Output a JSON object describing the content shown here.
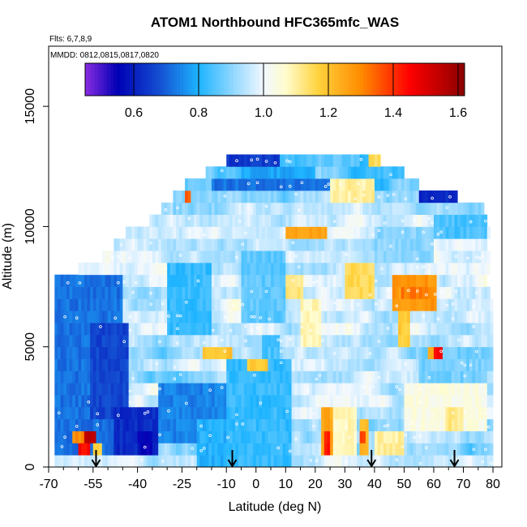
{
  "chart_data": {
    "type": "heatmap",
    "title": "ATOM1 Northbound HFC365mfc_WAS",
    "flights_label": "Flts: 6,7,8,9",
    "dates_label": "MMDD: 0812,0815,0817,0820",
    "xlabel": "Latitude (deg N)",
    "ylabel": "Altitude (m)",
    "xlim": [
      -70,
      83
    ],
    "ylim": [
      0,
      17500
    ],
    "x_ticks": [
      -70,
      -55,
      -40,
      -25,
      -10,
      0,
      10,
      20,
      30,
      40,
      50,
      60,
      70,
      80
    ],
    "x_ticks_minor": [
      -65,
      -60,
      -50,
      -45,
      -35,
      -30,
      -20,
      -15,
      -5,
      5,
      15,
      25,
      35,
      45,
      55,
      65,
      75
    ],
    "y_ticks": [
      0,
      5000,
      10000,
      15000
    ],
    "colorbar": {
      "range": [
        0.45,
        1.62
      ],
      "ticks": [
        0.6,
        0.8,
        1.0,
        1.2,
        1.4,
        1.6
      ],
      "tick_labels": [
        "0.6",
        "0.8",
        "1.0",
        "1.2",
        "1.4",
        "1.6"
      ],
      "stops": [
        {
          "v": 0.45,
          "c": "#8a2be2"
        },
        {
          "v": 0.55,
          "c": "#0000b4"
        },
        {
          "v": 0.68,
          "c": "#1450d2"
        },
        {
          "v": 0.8,
          "c": "#1eb4ff"
        },
        {
          "v": 0.92,
          "c": "#a0dcff"
        },
        {
          "v": 1.0,
          "c": "#f2f8ff"
        },
        {
          "v": 1.07,
          "c": "#fffccc"
        },
        {
          "v": 1.17,
          "c": "#ffd23c"
        },
        {
          "v": 1.3,
          "c": "#ff8c00"
        },
        {
          "v": 1.45,
          "c": "#ff0000"
        },
        {
          "v": 1.62,
          "c": "#8b0000"
        }
      ]
    },
    "profile_arrows_lat": [
      -54,
      -8,
      39,
      67
    ],
    "altitude_bin_m": 500,
    "profile": [
      {
        "alt": 250,
        "lat": [
          -68,
          80
        ],
        "base": 0.95
      },
      {
        "alt": 750,
        "lat": [
          -68,
          80
        ],
        "base": 0.92
      },
      {
        "alt": 1250,
        "lat": [
          -68,
          80
        ],
        "base": 0.95
      },
      {
        "alt": 1750,
        "lat": [
          -68,
          80
        ],
        "base": 0.93
      },
      {
        "alt": 2250,
        "lat": [
          -68,
          80
        ],
        "base": 0.96
      },
      {
        "alt": 2750,
        "lat": [
          -68,
          80
        ],
        "base": 0.95
      },
      {
        "alt": 3250,
        "lat": [
          -68,
          80
        ],
        "base": 0.95
      },
      {
        "alt": 3750,
        "lat": [
          -68,
          80
        ],
        "base": 0.94
      },
      {
        "alt": 4250,
        "lat": [
          -68,
          80
        ],
        "base": 0.96
      },
      {
        "alt": 4750,
        "lat": [
          -68,
          80
        ],
        "base": 0.94
      },
      {
        "alt": 5250,
        "lat": [
          -68,
          80
        ],
        "base": 0.95
      },
      {
        "alt": 5750,
        "lat": [
          -68,
          80
        ],
        "base": 0.96
      },
      {
        "alt": 6250,
        "lat": [
          -68,
          80
        ],
        "base": 0.97
      },
      {
        "alt": 6750,
        "lat": [
          -68,
          80
        ],
        "base": 0.98
      },
      {
        "alt": 7250,
        "lat": [
          -68,
          79
        ],
        "base": 0.97
      },
      {
        "alt": 7750,
        "lat": [
          -68,
          78
        ],
        "base": 0.98
      },
      {
        "alt": 8250,
        "lat": [
          -60,
          79
        ],
        "base": 0.97
      },
      {
        "alt": 8750,
        "lat": [
          -52,
          79
        ],
        "base": 0.98
      },
      {
        "alt": 9250,
        "lat": [
          -48,
          78
        ],
        "base": 0.96
      },
      {
        "alt": 9750,
        "lat": [
          -44,
          79
        ],
        "base": 0.97
      },
      {
        "alt": 10250,
        "lat": [
          -36,
          78
        ],
        "base": 0.96
      },
      {
        "alt": 10750,
        "lat": [
          -32,
          77
        ],
        "base": 0.94
      },
      {
        "alt": 11250,
        "lat": [
          -28,
          68
        ],
        "base": 0.9
      },
      {
        "alt": 11750,
        "lat": [
          -24,
          55
        ],
        "base": 0.88
      },
      {
        "alt": 12250,
        "lat": [
          -17,
          50
        ],
        "base": 0.86
      },
      {
        "alt": 12750,
        "lat": [
          -10,
          42
        ],
        "base": 0.82
      }
    ],
    "anomalies": [
      {
        "lat": [
          -68,
          -45
        ],
        "alt": [
          500,
          8000
        ],
        "value": 0.72
      },
      {
        "lat": [
          -56,
          -43
        ],
        "alt": [
          2000,
          6000
        ],
        "value": 0.66
      },
      {
        "lat": [
          -48,
          -33
        ],
        "alt": [
          500,
          2500
        ],
        "value": 0.62
      },
      {
        "lat": [
          -40,
          -35
        ],
        "alt": [
          500,
          1500
        ],
        "value": 0.56
      },
      {
        "lat": [
          -60,
          -56
        ],
        "alt": [
          500,
          1500
        ],
        "value": 1.45
      },
      {
        "lat": [
          -58,
          -54
        ],
        "alt": [
          1000,
          1500
        ],
        "value": 1.55
      },
      {
        "lat": [
          -62,
          -58
        ],
        "alt": [
          1000,
          1500
        ],
        "value": 1.3
      },
      {
        "lat": [
          -55,
          -52
        ],
        "alt": [
          500,
          1000
        ],
        "value": 1.18
      },
      {
        "lat": [
          -33,
          -10
        ],
        "alt": [
          1000,
          3500
        ],
        "value": 0.74
      },
      {
        "lat": [
          -20,
          -5
        ],
        "alt": [
          0,
          2000
        ],
        "value": 0.8
      },
      {
        "lat": [
          -10,
          12
        ],
        "alt": [
          0,
          4500
        ],
        "value": 0.82
      },
      {
        "lat": [
          22,
          26
        ],
        "alt": [
          500,
          2500
        ],
        "value": 1.25
      },
      {
        "lat": [
          23,
          25
        ],
        "alt": [
          500,
          1500
        ],
        "value": 1.42
      },
      {
        "lat": [
          35,
          38
        ],
        "alt": [
          500,
          2000
        ],
        "value": 1.22
      },
      {
        "lat": [
          35,
          37
        ],
        "alt": [
          1000,
          1500
        ],
        "value": 1.38
      },
      {
        "lat": [
          26,
          34
        ],
        "alt": [
          500,
          2500
        ],
        "value": 1.08
      },
      {
        "lat": [
          40,
          50
        ],
        "alt": [
          500,
          1500
        ],
        "value": 1.1
      },
      {
        "lat": [
          50,
          78
        ],
        "alt": [
          1500,
          3500
        ],
        "value": 1.04
      },
      {
        "lat": [
          55,
          78
        ],
        "alt": [
          3500,
          5000
        ],
        "value": 0.88
      },
      {
        "lat": [
          48,
          52
        ],
        "alt": [
          5000,
          6500
        ],
        "value": 1.18
      },
      {
        "lat": [
          58,
          62
        ],
        "alt": [
          4500,
          5000
        ],
        "value": 1.25
      },
      {
        "lat": [
          60,
          63
        ],
        "alt": [
          4500,
          5000
        ],
        "value": 1.45
      },
      {
        "lat": [
          46,
          61
        ],
        "alt": [
          6500,
          8000
        ],
        "value": 1.28
      },
      {
        "lat": [
          49,
          58
        ],
        "alt": [
          7000,
          7500
        ],
        "value": 1.32
      },
      {
        "lat": [
          -18,
          -8
        ],
        "alt": [
          4500,
          5000
        ],
        "value": 1.2
      },
      {
        "lat": [
          -3,
          4
        ],
        "alt": [
          4000,
          4500
        ],
        "value": 1.18
      },
      {
        "lat": [
          15,
          22
        ],
        "alt": [
          5000,
          7000
        ],
        "value": 1.08
      },
      {
        "lat": [
          30,
          40
        ],
        "alt": [
          7000,
          8500
        ],
        "value": 1.15
      },
      {
        "lat": [
          8,
          16
        ],
        "alt": [
          7000,
          8000
        ],
        "value": 1.12
      },
      {
        "lat": [
          10,
          24
        ],
        "alt": [
          9500,
          10000
        ],
        "value": 1.25
      },
      {
        "lat": [
          -30,
          -15
        ],
        "alt": [
          5500,
          8500
        ],
        "value": 0.82
      },
      {
        "lat": [
          -5,
          10
        ],
        "alt": [
          6000,
          9000
        ],
        "value": 0.86
      },
      {
        "lat": [
          40,
          60
        ],
        "alt": [
          8500,
          10000
        ],
        "value": 0.9
      },
      {
        "lat": [
          60,
          78
        ],
        "alt": [
          9500,
          10500
        ],
        "value": 0.84
      },
      {
        "lat": [
          -28,
          -10
        ],
        "alt": [
          10500,
          11500
        ],
        "value": 0.9
      },
      {
        "lat": [
          -15,
          25
        ],
        "alt": [
          11500,
          12000
        ],
        "value": 0.72
      },
      {
        "lat": [
          -5,
          20
        ],
        "alt": [
          12000,
          12500
        ],
        "value": 0.78
      },
      {
        "lat": [
          -10,
          8
        ],
        "alt": [
          12500,
          13000
        ],
        "value": 0.64
      },
      {
        "lat": [
          20,
          35
        ],
        "alt": [
          12500,
          13000
        ],
        "value": 0.86
      },
      {
        "lat": [
          25,
          40
        ],
        "alt": [
          11000,
          12000
        ],
        "value": 1.1
      },
      {
        "lat": [
          38,
          42
        ],
        "alt": [
          12500,
          13000
        ],
        "value": 1.15
      },
      {
        "lat": [
          -24,
          -22
        ],
        "alt": [
          11000,
          11500
        ],
        "value": 1.35
      },
      {
        "lat": [
          55,
          68
        ],
        "alt": [
          11000,
          11500
        ],
        "value": 0.62
      },
      {
        "lat": [
          2,
          8
        ],
        "alt": [
          4500,
          5500
        ],
        "value": 0.84
      },
      {
        "lat": [
          64,
          70
        ],
        "alt": [
          1500,
          2500
        ],
        "value": 1.12
      }
    ]
  }
}
